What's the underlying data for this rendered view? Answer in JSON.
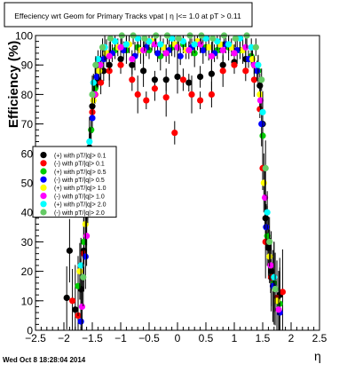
{
  "colors": {
    "background": "#ffffff",
    "axis": "#000000",
    "frame": "#000000"
  },
  "chart_data": {
    "type": "scatter",
    "title": "Effeciency wrt Geom for Primary Tracks vpat | η |<= 1.0 at pT > 0.11",
    "xlabel": "η",
    "ylabel": "Efficiency (%)",
    "xlim": [
      -2.5,
      2.5
    ],
    "ylim": [
      0,
      100
    ],
    "x_ticks": [
      -2.5,
      -2,
      -1.5,
      -1,
      -0.5,
      0,
      0.5,
      1,
      1.5,
      2,
      2.5
    ],
    "x_tick_labels": [
      "−2.5",
      "−2",
      "−1.5",
      "−1",
      "−0.5",
      "0",
      "0.5",
      "1",
      "1.5",
      "2",
      "2.5"
    ],
    "y_ticks": [
      0,
      10,
      20,
      30,
      40,
      50,
      60,
      70,
      80,
      90,
      100
    ],
    "y_tick_labels": [
      "0",
      "10",
      "20",
      "30",
      "40",
      "50",
      "60",
      "70",
      "80",
      "90",
      "100"
    ],
    "grid": false,
    "legend_position": "left-middle",
    "timestamp": "Wed Oct  8 18:28:04 2014",
    "series": [
      {
        "name": "(+) with pT/|q|> 0.1",
        "color": "#000000",
        "points": [
          [
            -1.95,
            11
          ],
          [
            -1.9,
            27
          ],
          [
            -1.8,
            7
          ],
          [
            -1.7,
            14
          ],
          [
            -1.65,
            27
          ],
          [
            -1.6,
            40
          ],
          [
            -1.55,
            62
          ],
          [
            -1.5,
            76
          ],
          [
            -1.45,
            83
          ],
          [
            -1.4,
            85
          ],
          [
            -1.3,
            88
          ],
          [
            -1.2,
            90
          ],
          [
            -1.0,
            92
          ],
          [
            -0.8,
            90
          ],
          [
            -0.6,
            88
          ],
          [
            -0.4,
            85
          ],
          [
            -0.2,
            85
          ],
          [
            0.0,
            86
          ],
          [
            0.2,
            84
          ],
          [
            0.4,
            86
          ],
          [
            0.6,
            87
          ],
          [
            0.8,
            90
          ],
          [
            1.0,
            91
          ],
          [
            1.2,
            92
          ],
          [
            1.35,
            90
          ],
          [
            1.45,
            83
          ],
          [
            1.5,
            70
          ],
          [
            1.55,
            38
          ],
          [
            1.6,
            28
          ],
          [
            1.65,
            20
          ],
          [
            1.75,
            10
          ],
          [
            1.8,
            12
          ]
        ]
      },
      {
        "name": "(-) with pT/|q|> 0.1",
        "color": "#ff0000",
        "points": [
          [
            -1.85,
            10
          ],
          [
            -1.75,
            5
          ],
          [
            -1.65,
            26
          ],
          [
            -1.6,
            42
          ],
          [
            -1.55,
            60
          ],
          [
            -1.5,
            74
          ],
          [
            -1.45,
            80
          ],
          [
            -1.35,
            84
          ],
          [
            -1.2,
            88
          ],
          [
            -1.0,
            90
          ],
          [
            -0.8,
            85
          ],
          [
            -0.7,
            80
          ],
          [
            -0.55,
            78
          ],
          [
            -0.4,
            82
          ],
          [
            -0.2,
            79
          ],
          [
            -0.05,
            67
          ],
          [
            0.1,
            85
          ],
          [
            0.25,
            80
          ],
          [
            0.4,
            78
          ],
          [
            0.6,
            80
          ],
          [
            0.8,
            88
          ],
          [
            1.0,
            90
          ],
          [
            1.2,
            88
          ],
          [
            1.35,
            85
          ],
          [
            1.45,
            75
          ],
          [
            1.5,
            55
          ],
          [
            1.55,
            30
          ],
          [
            1.65,
            18
          ],
          [
            1.75,
            11
          ],
          [
            1.85,
            13
          ]
        ]
      },
      {
        "name": "(+) with pT/|q|> 0.5",
        "color": "#00cc00",
        "points": [
          [
            -1.75,
            15
          ],
          [
            -1.65,
            30
          ],
          [
            -1.58,
            48
          ],
          [
            -1.52,
            68
          ],
          [
            -1.45,
            82
          ],
          [
            -1.35,
            90
          ],
          [
            -1.25,
            93
          ],
          [
            -1.1,
            95
          ],
          [
            -0.9,
            95
          ],
          [
            -0.7,
            96
          ],
          [
            -0.5,
            95
          ],
          [
            -0.3,
            93
          ],
          [
            -0.1,
            96
          ],
          [
            0.1,
            97
          ],
          [
            0.3,
            94
          ],
          [
            0.5,
            96
          ],
          [
            0.7,
            95
          ],
          [
            0.9,
            96
          ],
          [
            1.1,
            95
          ],
          [
            1.3,
            93
          ],
          [
            1.42,
            88
          ],
          [
            1.5,
            66
          ],
          [
            1.58,
            32
          ],
          [
            1.7,
            16
          ],
          [
            1.8,
            9
          ]
        ]
      },
      {
        "name": "(-) with pT/|q|> 0.5",
        "color": "#0000ff",
        "points": [
          [
            -1.7,
            3
          ],
          [
            -1.62,
            25
          ],
          [
            -1.55,
            55
          ],
          [
            -1.5,
            72
          ],
          [
            -1.42,
            86
          ],
          [
            -1.3,
            92
          ],
          [
            -1.15,
            94
          ],
          [
            -0.95,
            95
          ],
          [
            -0.75,
            93
          ],
          [
            -0.55,
            96
          ],
          [
            -0.35,
            94
          ],
          [
            -0.15,
            95
          ],
          [
            0.05,
            93
          ],
          [
            0.25,
            96
          ],
          [
            0.45,
            95
          ],
          [
            0.65,
            94
          ],
          [
            0.85,
            97
          ],
          [
            1.05,
            95
          ],
          [
            1.25,
            92
          ],
          [
            1.4,
            88
          ],
          [
            1.48,
            70
          ],
          [
            1.56,
            35
          ],
          [
            1.68,
            15
          ],
          [
            1.8,
            6
          ]
        ]
      },
      {
        "name": "(+) with pT/|q|> 1.0",
        "color": "#ffff00",
        "points": [
          [
            -1.72,
            20
          ],
          [
            -1.62,
            36
          ],
          [
            -1.54,
            58
          ],
          [
            -1.48,
            78
          ],
          [
            -1.38,
            88
          ],
          [
            -1.25,
            94
          ],
          [
            -1.05,
            96
          ],
          [
            -0.85,
            97
          ],
          [
            -0.65,
            95
          ],
          [
            -0.45,
            98
          ],
          [
            -0.25,
            96
          ],
          [
            -0.05,
            97
          ],
          [
            0.15,
            95
          ],
          [
            0.35,
            98
          ],
          [
            0.55,
            96
          ],
          [
            0.75,
            97
          ],
          [
            0.95,
            96
          ],
          [
            1.15,
            95
          ],
          [
            1.32,
            92
          ],
          [
            1.45,
            80
          ],
          [
            1.52,
            50
          ],
          [
            1.62,
            25
          ],
          [
            1.75,
            10
          ]
        ]
      },
      {
        "name": "(-) with pT/|q|> 1.0",
        "color": "#ff00ff",
        "points": [
          [
            -1.68,
            8
          ],
          [
            -1.6,
            32
          ],
          [
            -1.53,
            60
          ],
          [
            -1.46,
            80
          ],
          [
            -1.36,
            90
          ],
          [
            -1.2,
            93
          ],
          [
            -1.0,
            96
          ],
          [
            -0.8,
            92
          ],
          [
            -0.6,
            95
          ],
          [
            -0.4,
            97
          ],
          [
            -0.2,
            94
          ],
          [
            0.0,
            96
          ],
          [
            0.2,
            95
          ],
          [
            0.4,
            97
          ],
          [
            0.6,
            93
          ],
          [
            0.8,
            95
          ],
          [
            1.0,
            94
          ],
          [
            1.2,
            96
          ],
          [
            1.35,
            90
          ],
          [
            1.46,
            78
          ],
          [
            1.54,
            45
          ],
          [
            1.64,
            22
          ],
          [
            1.78,
            7
          ]
        ]
      },
      {
        "name": "(+) with pT/|q|> 2.0",
        "color": "#00ffff",
        "points": [
          [
            -1.7,
            22
          ],
          [
            -1.62,
            40
          ],
          [
            -1.55,
            64
          ],
          [
            -1.48,
            84
          ],
          [
            -1.4,
            92
          ],
          [
            -1.28,
            96
          ],
          [
            -1.1,
            98
          ],
          [
            -0.9,
            97
          ],
          [
            -0.7,
            99
          ],
          [
            -0.5,
            98
          ],
          [
            -0.3,
            97
          ],
          [
            -0.1,
            99
          ],
          [
            0.1,
            98
          ],
          [
            0.3,
            97
          ],
          [
            0.5,
            99
          ],
          [
            0.7,
            98
          ],
          [
            0.9,
            97
          ],
          [
            1.1,
            99
          ],
          [
            1.3,
            96
          ],
          [
            1.42,
            90
          ],
          [
            1.5,
            74
          ],
          [
            1.58,
            40
          ],
          [
            1.7,
            18
          ]
        ]
      },
      {
        "name": "(-) with pT/|q|> 2.0",
        "color": "#66cc66",
        "points": [
          [
            -1.66,
            18
          ],
          [
            -1.58,
            45
          ],
          [
            -1.5,
            80
          ],
          [
            -1.44,
            90
          ],
          [
            -1.32,
            96
          ],
          [
            -1.18,
            99
          ],
          [
            -0.98,
            100
          ],
          [
            -0.78,
            100
          ],
          [
            -0.58,
            99
          ],
          [
            -0.38,
            100
          ],
          [
            -0.18,
            100
          ],
          [
            0.02,
            99
          ],
          [
            0.22,
            100
          ],
          [
            0.42,
            100
          ],
          [
            0.62,
            99
          ],
          [
            0.82,
            100
          ],
          [
            1.02,
            99
          ],
          [
            1.22,
            100
          ],
          [
            1.38,
            96
          ],
          [
            1.48,
            85
          ],
          [
            1.55,
            55
          ],
          [
            1.62,
            30
          ],
          [
            1.72,
            14
          ]
        ]
      }
    ]
  }
}
